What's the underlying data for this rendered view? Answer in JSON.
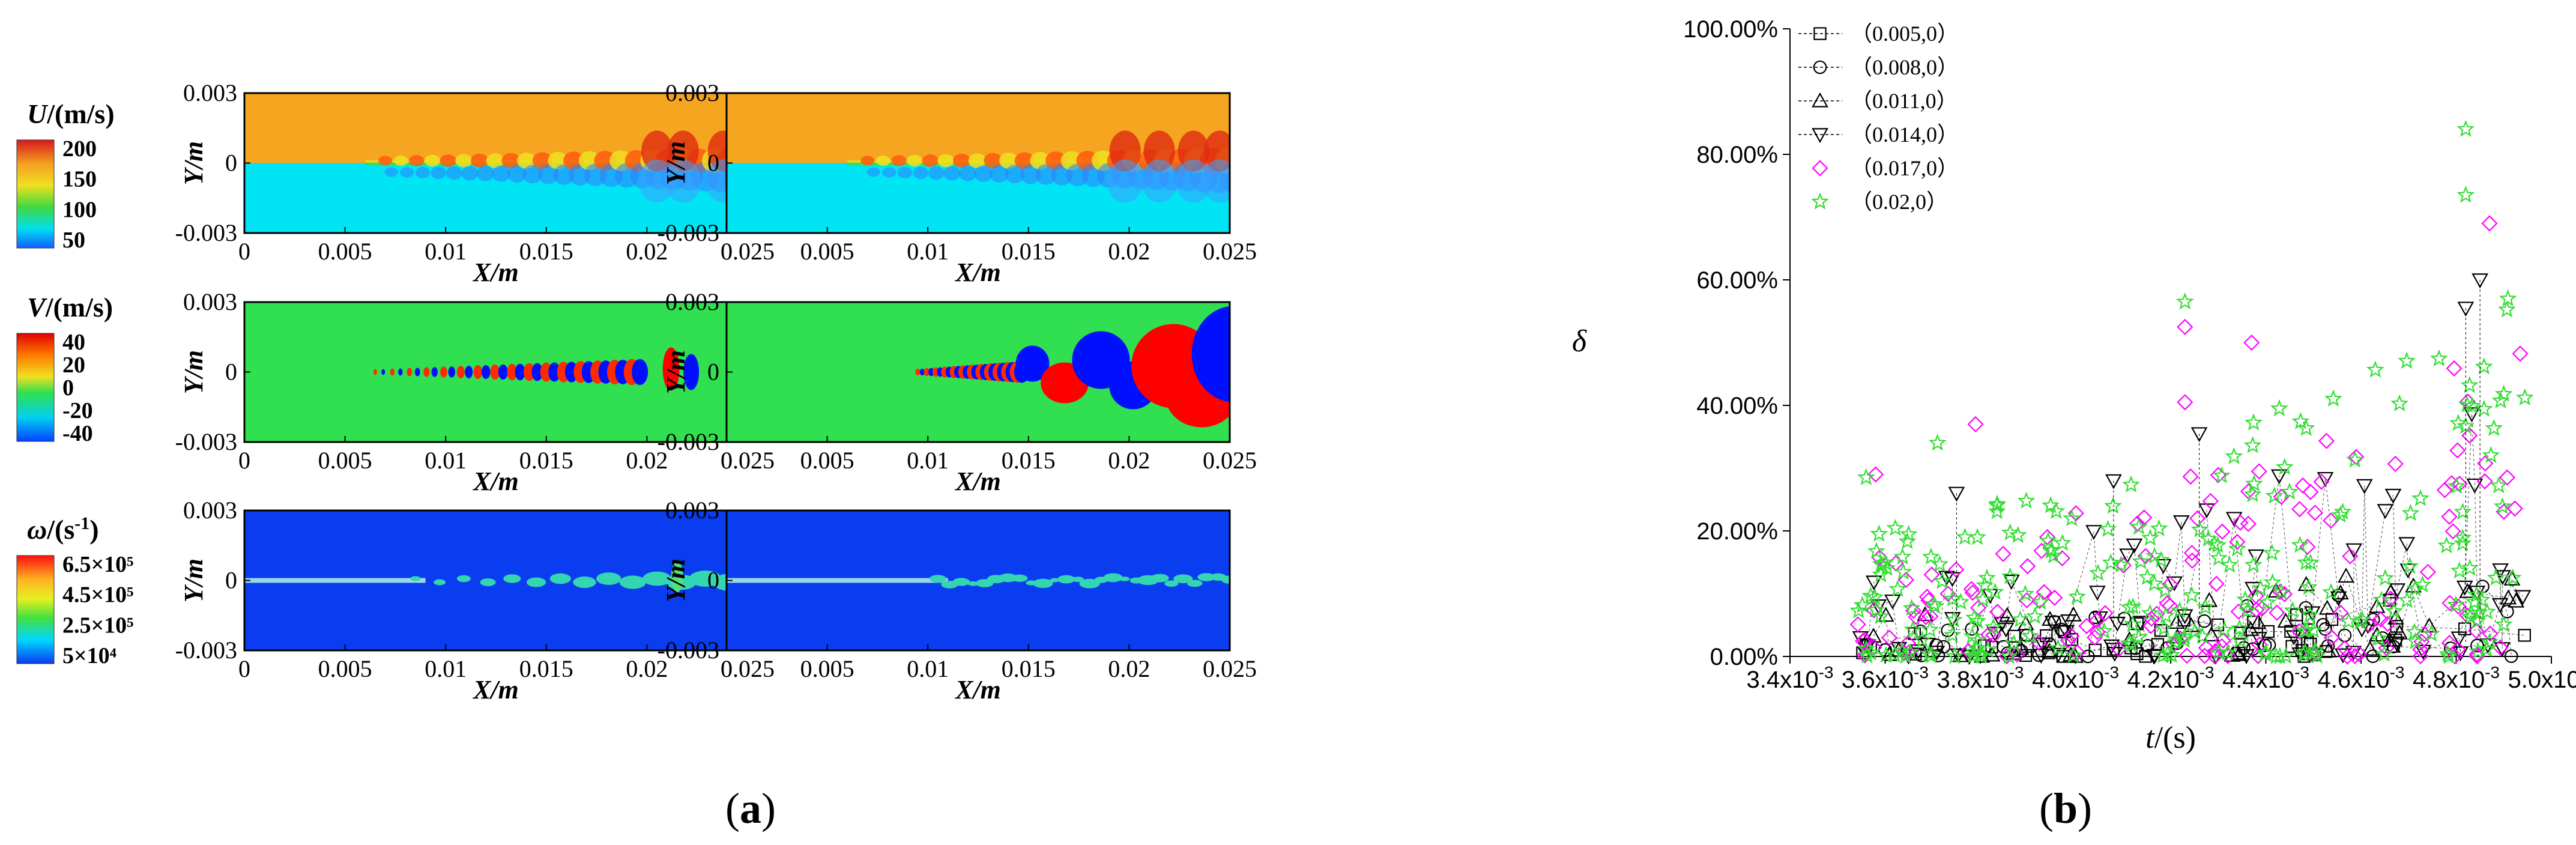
{
  "chart_data": [
    {
      "type": "heatmap",
      "panel": "a",
      "caption": "(a)",
      "caption_letter": "a",
      "rows": [
        {
          "variable": "U",
          "colorbar_title_symbol": "U",
          "colorbar_title_unit": "/(m/s)",
          "colorbar_ticks": [
            "200",
            "150",
            "100",
            "50"
          ],
          "colormap": [
            "#d7191c",
            "#f4a020",
            "#f0e020",
            "#40d840",
            "#00e0f0",
            "#1060ff"
          ],
          "background_colors": {
            "upper": "#f5a520",
            "lower": "#00e4f4"
          }
        },
        {
          "variable": "V",
          "colorbar_title_symbol": "V",
          "colorbar_title_unit": "/(m/s)",
          "colorbar_ticks": [
            "40",
            "20",
            "0",
            "-20",
            "-40"
          ],
          "colormap": [
            "#e00000",
            "#ff7a00",
            "#f0e020",
            "#30e050",
            "#00d0f0",
            "#0040ff"
          ],
          "background_colors": {
            "field": "#30e050",
            "positive": "#ff0000",
            "negative": "#0010ff"
          }
        },
        {
          "variable": "ω",
          "colorbar_title_symbol": "ω",
          "colorbar_title_unit": "/(s",
          "colorbar_title_sup": "-1",
          "colorbar_title_close": ")",
          "colorbar_ticks": [
            "6.5×10⁵",
            "4.5×10⁵",
            "2.5×10⁵",
            "5×10⁴"
          ],
          "colormap": [
            "#ff1010",
            "#ffb020",
            "#e8f020",
            "#40e040",
            "#00d8ff",
            "#0a3cf0"
          ],
          "background_colors": {
            "field": "#0a3cf0",
            "vortex": "#33d6b0",
            "shear_layer": "#9ad8e8"
          }
        }
      ],
      "xlabel": "X/m",
      "ylabel": "Y/m",
      "xticks": [
        "0",
        "0.005",
        "0.01",
        "0.015",
        "0.02",
        "0.025"
      ],
      "yticks": [
        "0.003",
        "0",
        "-0.003"
      ],
      "xlim": [
        0,
        0.025
      ],
      "ylim": [
        -0.003,
        0.003
      ]
    },
    {
      "type": "scatter",
      "panel": "b",
      "caption": "(b)",
      "caption_letter": "b",
      "xlabel": "t/(s)",
      "xlabel_italic": "t",
      "xlabel_rest": "/(s)",
      "ylabel": "δ",
      "xlim": [
        0.0034,
        0.005
      ],
      "ylim": [
        0,
        1.0
      ],
      "xtick_mantissas": [
        "3.4x10",
        "3.6x10",
        "3.8x10",
        "4.0x10",
        "4.2x10",
        "4.4x10",
        "4.6x10",
        "4.8x10",
        "5.0x10"
      ],
      "xtick_exponent": "-3",
      "yticks": [
        "0.00%",
        "20.00%",
        "40.00%",
        "60.00%",
        "80.00%",
        "100.00%"
      ],
      "data_xrange": [
        0.00354,
        0.00495
      ],
      "legend_position": "top-left",
      "series": [
        {
          "name": "（0.005,0）",
          "marker": "square",
          "color": "#000000",
          "line": "dashed",
          "count": 45,
          "max": 0.15
        },
        {
          "name": "（0.008,0）",
          "marker": "circle",
          "color": "#000000",
          "line": "dashed",
          "count": 45,
          "max": 0.18
        },
        {
          "name": "（0.011,0）",
          "marker": "triangle-up",
          "color": "#000000",
          "line": "dashed",
          "count": 50,
          "max": 0.25
        },
        {
          "name": "（0.014,0）",
          "marker": "triangle-down",
          "color": "#000000",
          "line": "dashed",
          "count": 80,
          "max": 0.6
        },
        {
          "name": "（0.017,0）",
          "marker": "diamond",
          "color": "#ff00ff",
          "line": "none",
          "count": 150,
          "max": 0.69
        },
        {
          "name": "（0.02,0）",
          "marker": "star",
          "color": "#33dd33",
          "line": "none",
          "count": 240,
          "max": 0.84
        }
      ],
      "highlight_points": [
        {
          "series": 5,
          "x": 0.00482,
          "y": 0.84
        },
        {
          "series": 5,
          "x": 0.00482,
          "y": 0.735
        },
        {
          "series": 4,
          "x": 0.00487,
          "y": 0.69
        },
        {
          "series": 3,
          "x": 0.00485,
          "y": 0.6
        },
        {
          "series": 5,
          "x": 0.00423,
          "y": 0.565
        },
        {
          "series": 3,
          "x": 0.00482,
          "y": 0.555
        },
        {
          "series": 4,
          "x": 0.00423,
          "y": 0.525
        },
        {
          "series": 4,
          "x": 0.00437,
          "y": 0.5
        },
        {
          "series": 4,
          "x": 0.00423,
          "y": 0.405
        },
        {
          "series": 4,
          "x": 0.00379,
          "y": 0.37
        },
        {
          "series": 3,
          "x": 0.00426,
          "y": 0.355
        },
        {
          "series": 5,
          "x": 0.00371,
          "y": 0.34
        },
        {
          "series": 3,
          "x": 0.00408,
          "y": 0.28
        },
        {
          "series": 3,
          "x": 0.00375,
          "y": 0.26
        },
        {
          "series": 4,
          "x": 0.00358,
          "y": 0.29
        },
        {
          "series": 5,
          "x": 0.00356,
          "y": 0.285
        }
      ]
    }
  ]
}
